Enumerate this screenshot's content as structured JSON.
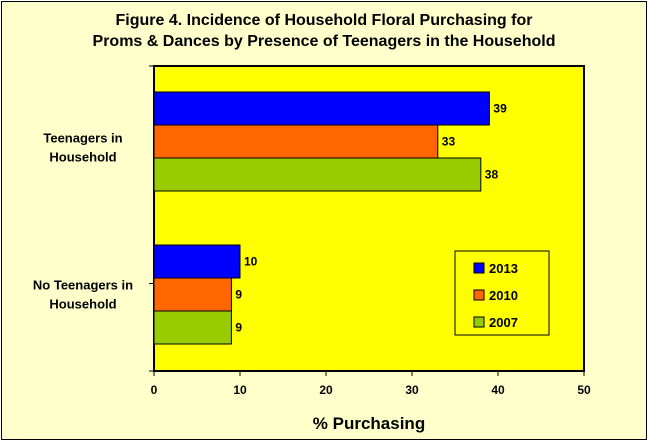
{
  "chart_data": {
    "type": "bar",
    "orientation": "horizontal",
    "title": "Figure 4.  Incidence of Household Floral Purchasing for Proms & Dances by Presence of Teenagers in the Household",
    "title_lines": [
      "Figure 4.  Incidence of Household Floral Purchasing for",
      "Proms & Dances by Presence of Teenagers in the Household"
    ],
    "categories": [
      [
        "Teenagers in",
        "Household"
      ],
      [
        "No Teenagers in",
        "Household"
      ]
    ],
    "series": [
      {
        "name": "2013",
        "color": "#0000ff",
        "values": [
          39,
          10
        ]
      },
      {
        "name": "2010",
        "color": "#ff6600",
        "values": [
          33,
          9
        ]
      },
      {
        "name": "2007",
        "color": "#99cc00",
        "values": [
          38,
          9
        ]
      }
    ],
    "xlabel": "% Purchasing",
    "ylabel": "",
    "xlim": [
      0,
      50
    ],
    "xticks": [
      0,
      10,
      20,
      30,
      40,
      50
    ],
    "grid": false,
    "legend_position": "bottom-right",
    "plot_background": "#ffff00",
    "frame_background": "#ffffcc"
  }
}
